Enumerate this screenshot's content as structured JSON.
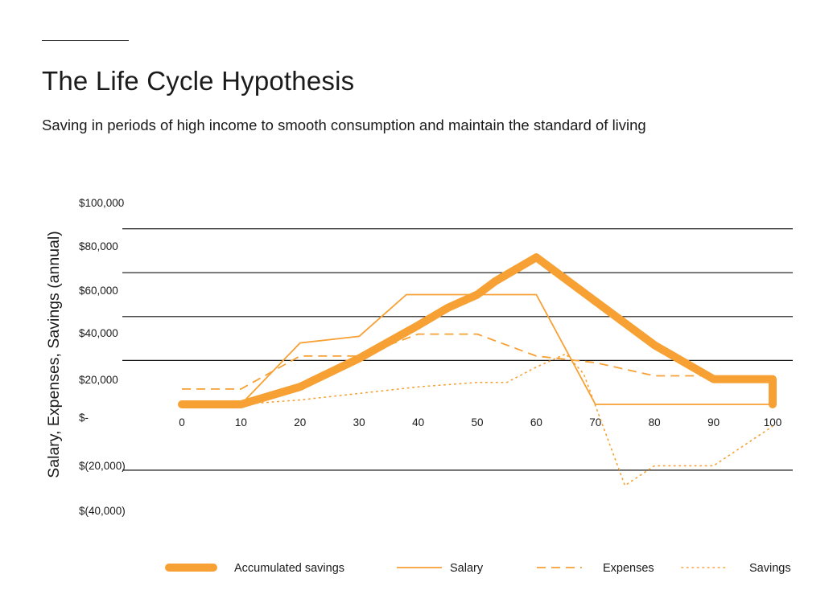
{
  "chart_data": {
    "type": "line",
    "title": "The Life Cycle Hypothesis",
    "subtitle": "Saving in periods of high income to smooth consumption and maintain the standard of living",
    "xlabel": "",
    "ylabel": "Salary, Expenses, Savings (annual)",
    "xlim": [
      0,
      100
    ],
    "ylim": [
      -40000,
      100000
    ],
    "x_ticks": [
      0,
      10,
      20,
      30,
      40,
      50,
      60,
      70,
      80,
      90,
      100
    ],
    "x_tick_labels": [
      "0",
      "10",
      "20",
      "30",
      "40",
      "50",
      "60",
      "70",
      "80",
      "90",
      "100"
    ],
    "y_ticks": [
      100000,
      80000,
      60000,
      40000,
      20000,
      0,
      -20000,
      -40000
    ],
    "y_tick_labels": [
      "$100,000",
      "$80,000",
      "$60,000",
      "$40,000",
      "$20,000",
      "$-",
      "$(20,000)",
      "$(40,000)"
    ],
    "gridlines_at": [
      80000,
      60000,
      40000,
      20000,
      -30000
    ],
    "color": "#F7A033",
    "series": [
      {
        "name": "Accumulated savings",
        "style": "thick-solid",
        "x": [
          0,
          10,
          20,
          30,
          40,
          45,
          50,
          53,
          60,
          70,
          80,
          90,
          100,
          100
        ],
        "y": [
          0,
          0,
          8000,
          21000,
          36000,
          44000,
          50000,
          56000,
          67000,
          47000,
          27000,
          11500,
          11500,
          0
        ]
      },
      {
        "name": "Salary",
        "style": "solid",
        "x": [
          10,
          20,
          30,
          38,
          60,
          70,
          100
        ],
        "y": [
          0,
          28000,
          31000,
          50000,
          50000,
          0,
          0
        ]
      },
      {
        "name": "Expenses",
        "style": "dashed",
        "x": [
          0,
          10,
          20,
          30,
          40,
          50,
          60,
          70,
          80,
          90
        ],
        "y": [
          7000,
          7000,
          22000,
          22000,
          32000,
          32000,
          22000,
          19000,
          13000,
          13000
        ]
      },
      {
        "name": "Savings",
        "style": "dotted",
        "x": [
          10,
          20,
          30,
          40,
          50,
          55,
          60,
          65,
          68,
          75,
          80,
          85,
          90,
          100
        ],
        "y": [
          0,
          2000,
          5000,
          8000,
          10000,
          10000,
          17000,
          23000,
          14000,
          -37000,
          -28000,
          -28000,
          -28000,
          -10000
        ]
      }
    ],
    "legend": {
      "position": "bottom",
      "entries": [
        "Accumulated savings",
        "Salary",
        "Expenses",
        "Savings"
      ]
    }
  }
}
